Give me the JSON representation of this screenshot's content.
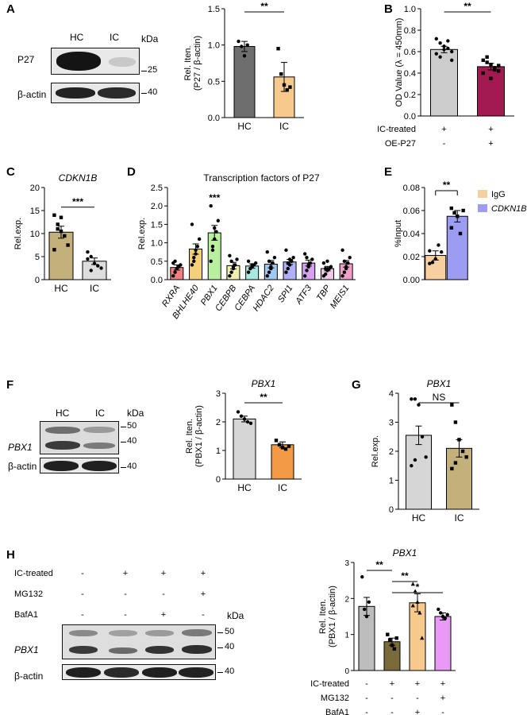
{
  "panels": {
    "A": {
      "letter": "A",
      "blot": {
        "lanes": [
          "HC",
          "IC"
        ],
        "kda_label": "kDa",
        "rows": [
          "P27",
          "β-actin"
        ],
        "mw_markers": [
          "25",
          "40"
        ]
      }
    },
    "B": {
      "letter": "B"
    },
    "C": {
      "letter": "C"
    },
    "D": {
      "letter": "D"
    },
    "E": {
      "letter": "E"
    },
    "F": {
      "letter": "F",
      "blot": {
        "lanes": [
          "HC",
          "IC"
        ],
        "kda_label": "kDa",
        "rows": [
          "PBX1",
          "β-actin"
        ],
        "mw_markers": [
          "50",
          "40",
          "40"
        ]
      }
    },
    "G": {
      "letter": "G"
    },
    "H": {
      "letter": "H",
      "blot": {
        "kda_label": "kDa",
        "rows": [
          "PBX1",
          "β-actin"
        ],
        "mw_markers": [
          "50",
          "40",
          "40"
        ],
        "treatments": [
          {
            "name": "IC-treated",
            "signs": [
              "-",
              "+",
              "+",
              "+"
            ]
          },
          {
            "name": "MG132",
            "signs": [
              "-",
              "-",
              "-",
              "+"
            ]
          },
          {
            "name": "BafA1",
            "signs": [
              "-",
              "-",
              "+",
              "-"
            ]
          }
        ]
      }
    }
  },
  "chart_data": [
    {
      "id": "A",
      "type": "bar",
      "categories": [
        "HC",
        "IC"
      ],
      "values": [
        0.98,
        0.56
      ],
      "errors": [
        0.07,
        0.2
      ],
      "points": [
        [
          1.05,
          0.98,
          0.85,
          1.0
        ],
        [
          0.95,
          0.6,
          0.45,
          0.38,
          0.42
        ]
      ],
      "colors": [
        "#6e6e6e",
        "#f7c98c"
      ],
      "point_shapes": [
        "circle",
        "square"
      ],
      "ylabel": "Rel. Iten.\n(P27 / β-actin)",
      "ylim": [
        0,
        1.5
      ],
      "yticks": [
        0.0,
        0.5,
        1.0,
        1.5
      ],
      "significance": [
        {
          "pair": [
            0,
            1
          ],
          "label": "**"
        }
      ]
    },
    {
      "id": "B",
      "type": "bar",
      "categories": [
        "",
        ""
      ],
      "values": [
        0.62,
        0.46
      ],
      "errors": [
        0.03,
        0.03
      ],
      "points": [
        [
          0.72,
          0.68,
          0.65,
          0.63,
          0.6,
          0.58,
          0.55,
          0.62,
          0.7,
          0.52
        ],
        [
          0.52,
          0.55,
          0.48,
          0.45,
          0.42,
          0.4,
          0.5,
          0.35,
          0.43,
          0.47
        ]
      ],
      "colors": [
        "#cccccc",
        "#a31a52"
      ],
      "point_shapes": [
        "circle",
        "square"
      ],
      "ylabel": "OD Value (λ = 450mm)",
      "ylim": [
        0,
        1.0
      ],
      "yticks": [
        0.0,
        0.2,
        0.4,
        0.6,
        0.8,
        1.0
      ],
      "significance": [
        {
          "pair": [
            0,
            1
          ],
          "label": "**"
        }
      ],
      "treatments": [
        {
          "name": "IC-treated",
          "signs": [
            "+",
            "+"
          ]
        },
        {
          "name": "OE-P27",
          "signs": [
            "-",
            "+"
          ]
        }
      ]
    },
    {
      "id": "C",
      "type": "bar",
      "title": "CDKN1B",
      "categories": [
        "HC",
        "IC"
      ],
      "values": [
        10.3,
        4.0
      ],
      "errors": [
        1.3,
        0.7
      ],
      "points": [
        [
          14.0,
          12.0,
          10.5,
          9.5,
          7.5,
          6.5,
          11.0,
          13.5
        ],
        [
          6.0,
          5.0,
          3.5,
          3.0,
          2.5,
          4.5,
          2.0
        ]
      ],
      "colors": [
        "#c4b07a",
        "#dedede"
      ],
      "point_shapes": [
        "square",
        "circle"
      ],
      "ylabel": "Rel.exp.",
      "ylim": [
        0,
        20
      ],
      "yticks": [
        0,
        5,
        10,
        15,
        20
      ],
      "significance": [
        {
          "pair": [
            0,
            1
          ],
          "label": "***"
        }
      ]
    },
    {
      "id": "D",
      "type": "bar",
      "title": "Transcription factors of P27",
      "categories": [
        "RXRA",
        "BHLHE40",
        "PBX1",
        "CEBPB",
        "CEBPA",
        "HDAC2",
        "SPI1",
        "ATF3",
        "TBP",
        "MEIS1"
      ],
      "values": [
        0.33,
        0.83,
        1.27,
        0.38,
        0.37,
        0.42,
        0.48,
        0.45,
        0.3,
        0.43
      ],
      "errors": [
        0.07,
        0.14,
        0.2,
        0.09,
        0.06,
        0.1,
        0.07,
        0.08,
        0.06,
        0.09
      ],
      "points": [
        [
          0.1,
          0.2,
          0.3,
          0.35,
          0.4,
          0.45,
          0.5,
          0.3
        ],
        [
          0.4,
          0.6,
          0.8,
          0.9,
          1.1,
          1.5,
          0.5,
          0.7
        ],
        [
          0.5,
          0.8,
          1.1,
          1.3,
          1.6,
          2.0,
          0.9,
          1.4
        ],
        [
          0.1,
          0.2,
          0.3,
          0.4,
          0.55,
          0.65,
          0.5,
          0.35
        ],
        [
          0.2,
          0.3,
          0.35,
          0.4,
          0.45,
          0.5,
          0.3,
          0.4
        ],
        [
          0.1,
          0.2,
          0.3,
          0.45,
          0.6,
          0.75,
          0.5,
          0.35
        ],
        [
          0.2,
          0.3,
          0.4,
          0.5,
          0.6,
          0.8,
          0.45,
          0.55
        ],
        [
          0.1,
          0.25,
          0.35,
          0.45,
          0.55,
          0.7,
          0.6,
          0.4
        ],
        [
          0.1,
          0.15,
          0.25,
          0.3,
          0.35,
          0.45,
          0.3,
          0.5
        ],
        [
          0.1,
          0.2,
          0.3,
          0.45,
          0.6,
          0.8,
          0.5,
          0.35
        ]
      ],
      "colors": [
        "#f08080",
        "#f5d07a",
        "#b8f0a0",
        "#f0f0b0",
        "#a8e8e0",
        "#a0c8f0",
        "#b0b0f8",
        "#d8a0f0",
        "#f0c8e8",
        "#f0a0c8"
      ],
      "point_shapes": [
        "circle"
      ],
      "ylabel": "Rel.exp.",
      "ylim": [
        0,
        2.5
      ],
      "yticks": [
        0.0,
        0.5,
        1.0,
        1.5,
        2.0,
        2.5
      ],
      "significance": [
        {
          "index": 2,
          "label": "***"
        }
      ]
    },
    {
      "id": "E",
      "type": "bar",
      "categories": [
        "",
        ""
      ],
      "values": [
        0.021,
        0.055
      ],
      "errors": [
        0.004,
        0.005
      ],
      "points": [
        [
          0.025,
          0.015,
          0.018,
          0.03,
          0.024,
          0.014
        ],
        [
          0.062,
          0.058,
          0.055,
          0.04,
          0.06,
          0.045
        ]
      ],
      "colors": [
        "#f8cf9e",
        "#9b9cf2"
      ],
      "point_shapes": [
        "circle",
        "square"
      ],
      "ylabel": "%Input",
      "ylim": [
        0,
        0.08
      ],
      "yticks": [
        0.0,
        0.02,
        0.04,
        0.06,
        0.08
      ],
      "significance": [
        {
          "pair": [
            0,
            1
          ],
          "label": "**"
        }
      ],
      "legend": {
        "position": "right",
        "entries": [
          "IgG",
          "CDKN1B"
        ]
      }
    },
    {
      "id": "F",
      "type": "bar",
      "title": "PBX1",
      "categories": [
        "HC",
        "IC"
      ],
      "values": [
        2.1,
        1.2
      ],
      "errors": [
        0.1,
        0.1
      ],
      "points": [
        [
          2.35,
          2.2,
          2.1,
          2.0,
          1.95
        ],
        [
          1.35,
          1.2,
          1.1,
          1.05,
          1.15
        ]
      ],
      "colors": [
        "#d6d6d6",
        "#f39a47"
      ],
      "point_shapes": [
        "circle",
        "square"
      ],
      "ylabel": "Rel. Iten.\n(PBX1 / β-actin)",
      "ylim": [
        0,
        3
      ],
      "yticks": [
        0,
        1,
        2,
        3
      ],
      "significance": [
        {
          "pair": [
            0,
            1
          ],
          "label": "**"
        }
      ]
    },
    {
      "id": "G",
      "type": "bar",
      "title": "PBX1",
      "categories": [
        "HC",
        "IC"
      ],
      "values": [
        2.55,
        2.1
      ],
      "errors": [
        0.32,
        0.3
      ],
      "points": [
        [
          3.8,
          3.8,
          3.6,
          2.5,
          1.8,
          1.5,
          1.7
        ],
        [
          3.6,
          3.0,
          2.4,
          2.0,
          1.8,
          1.4,
          1.6
        ]
      ],
      "colors": [
        "#d6d6d6",
        "#c4b07a"
      ],
      "point_shapes": [
        "circle",
        "square"
      ],
      "ylabel": "Rel.exp.",
      "ylim": [
        0,
        4
      ],
      "yticks": [
        0,
        1,
        2,
        3,
        4
      ],
      "significance": [
        {
          "pair": [
            0,
            1
          ],
          "label": "NS"
        }
      ]
    },
    {
      "id": "H",
      "type": "bar",
      "title": "PBX1",
      "categories": [
        "",
        "",
        "",
        ""
      ],
      "values": [
        1.78,
        0.8,
        1.88,
        1.5
      ],
      "errors": [
        0.25,
        0.1,
        0.25,
        0.1
      ],
      "points": [
        [
          2.6,
          1.7,
          1.5,
          1.9
        ],
        [
          1.0,
          0.85,
          0.7,
          0.6,
          0.9
        ],
        [
          2.4,
          2.2,
          1.9,
          1.6,
          0.9,
          1.8
        ],
        [
          1.7,
          1.6,
          1.5,
          1.45,
          1.55
        ]
      ],
      "colors": [
        "#bdbdbd",
        "#7a6a3a",
        "#f8c98c",
        "#e89af5"
      ],
      "point_shapes": [
        "circle",
        "square",
        "triangle",
        "circle"
      ],
      "ylabel": "Rel. Iten.\n(PBX1 / β-actin)",
      "ylim": [
        0,
        3
      ],
      "yticks": [
        0,
        1,
        2,
        3
      ],
      "significance": [
        {
          "pair": [
            0,
            1
          ],
          "label": "**"
        },
        {
          "pair": [
            1,
            2
          ],
          "label": "**"
        },
        {
          "pair": [
            1,
            3
          ],
          "label": "*"
        }
      ],
      "treatments": [
        {
          "name": "IC-treated",
          "signs": [
            "-",
            "+",
            "+",
            "+"
          ]
        },
        {
          "name": "MG132",
          "signs": [
            "-",
            "-",
            "-",
            "+"
          ]
        },
        {
          "name": "BafA1",
          "signs": [
            "-",
            "-",
            "+",
            "-"
          ]
        }
      ]
    }
  ]
}
